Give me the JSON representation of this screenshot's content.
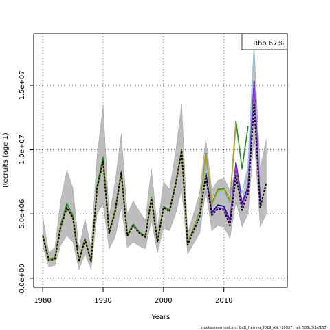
{
  "chart_data": {
    "type": "line",
    "title": "",
    "xlabel": "Years",
    "ylabel": "Recruits (age 1)",
    "xlim": [
      1978.5,
      2020.5
    ],
    "ylim": [
      -700000,
      19000000
    ],
    "x_ticks": [
      1980,
      1990,
      2000,
      2010
    ],
    "x_tick_labels": [
      "1980",
      "1990",
      "2000",
      "2010"
    ],
    "y_ticks": [
      0,
      5000000,
      10000000,
      15000000
    ],
    "y_tick_labels": [
      "0.0e+00",
      "5.0e+06",
      "1.0e+07",
      "1.5e+07"
    ],
    "grid": true,
    "legend_text": "Rho 67%",
    "legend_position": "top-right",
    "ci_band": {
      "x": [
        1980,
        1981,
        1982,
        1983,
        1984,
        1985,
        1986,
        1987,
        1988,
        1989,
        1990,
        1991,
        1992,
        1993,
        1994,
        1995,
        1996,
        1997,
        1998,
        1999,
        2000,
        2001,
        2002,
        2003,
        2004,
        2005,
        2006,
        2007,
        2008,
        2009,
        2010,
        2011,
        2012,
        2013,
        2014,
        2015,
        2016,
        2017
      ],
      "lower": [
        2500000,
        900000,
        1000000,
        2600000,
        3300000,
        2800000,
        700000,
        1900000,
        700000,
        5000000,
        5800000,
        2300000,
        3200000,
        5500000,
        2400000,
        2800000,
        2500000,
        2300000,
        4500000,
        2000000,
        3900000,
        3700000,
        5000000,
        6900000,
        1900000,
        2700000,
        3500000,
        6800000,
        3700000,
        4100000,
        4000000,
        3100000,
        6000000,
        4000000,
        5000000,
        11000000,
        4000000,
        5000000
      ],
      "upper": [
        4800000,
        2000000,
        2400000,
        6100000,
        8400000,
        7000000,
        2300000,
        4600000,
        2400000,
        9500000,
        13400000,
        4800000,
        7500000,
        11200000,
        5000000,
        6000000,
        5200000,
        4500000,
        8500000,
        3900000,
        7500000,
        6900000,
        9800000,
        13500000,
        3500000,
        5000000,
        6700000,
        10800000,
        6900000,
        7600000,
        7800000,
        6800000,
        8500000,
        6000000,
        8500000,
        18000000,
        8500000,
        10800000
      ]
    },
    "series": [
      {
        "name": "",
        "color": "#87cbe6",
        "x": [
          2005,
          2006,
          2007,
          2008,
          2009,
          2010,
          2011,
          2012,
          2013,
          2014,
          2015
        ],
        "values": [
          3800000,
          4500000,
          8500000,
          5600000,
          6700000,
          6500000,
          5800000,
          8500000,
          6600000,
          8700000,
          18000000
        ]
      },
      {
        "name": "",
        "color": "#228b22",
        "x": [
          1980,
          1981,
          1982,
          1983,
          1984,
          1985,
          1986,
          1987,
          1988,
          1989,
          1990,
          1991,
          1992,
          1993,
          1994,
          1995,
          1996,
          1997,
          1998,
          1999,
          2000,
          2001,
          2002,
          2003,
          2004,
          2005,
          2006,
          2007,
          2008,
          2009,
          2010,
          2011,
          2012,
          2013,
          2014
        ],
        "values": [
          3400000,
          1500000,
          1600000,
          4200000,
          5800000,
          4900000,
          1400000,
          3100000,
          1400000,
          7200000,
          9400000,
          3600000,
          5300000,
          8300000,
          3400000,
          4200000,
          3600000,
          3300000,
          6300000,
          2900000,
          5600000,
          5300000,
          7400000,
          10000000,
          2800000,
          3900000,
          5200000,
          9700000,
          5800000,
          6900000,
          7000000,
          6000000,
          12200000,
          8500000,
          11800000
        ]
      },
      {
        "name": "",
        "color": "#b8a31f",
        "x": [
          1980,
          1981,
          1982,
          1983,
          1984,
          1985,
          1986,
          1987,
          1988,
          1989,
          1990,
          1991,
          1992,
          1993,
          1994,
          1995,
          1996,
          1997,
          1998,
          1999,
          2000,
          2001,
          2002,
          2003,
          2004,
          2005,
          2006,
          2007,
          2008,
          2009,
          2010,
          2011,
          2012
        ],
        "values": [
          3300000,
          1400000,
          1500000,
          4000000,
          5500000,
          4600000,
          1300000,
          3000000,
          1300000,
          6900000,
          9000000,
          3500000,
          5100000,
          8100000,
          3300000,
          4100000,
          3500000,
          3200000,
          6200000,
          2800000,
          5500000,
          5200000,
          7300000,
          9900000,
          2700000,
          3800000,
          5100000,
          9600000,
          5700000,
          6800000,
          6900000,
          5900000,
          12000000
        ]
      },
      {
        "name": "",
        "color": "#00008b",
        "x": [
          2007,
          2008,
          2009,
          2010,
          2011,
          2012,
          2013,
          2014,
          2015,
          2016
        ],
        "values": [
          8200000,
          5100000,
          5700000,
          5600000,
          4500000,
          9000000,
          5800000,
          7100000,
          15300000,
          6000000
        ]
      },
      {
        "name": "",
        "color": "#9b30ff",
        "x": [
          2007,
          2008,
          2009,
          2010,
          2011,
          2012,
          2013,
          2014,
          2015,
          2016
        ],
        "values": [
          8000000,
          5000000,
          5500000,
          5400000,
          4400000,
          8800000,
          5600000,
          7000000,
          15100000,
          5800000
        ]
      },
      {
        "name": "",
        "color": "#000000",
        "dashed": true,
        "x": [
          1980,
          1981,
          1982,
          1983,
          1984,
          1985,
          1986,
          1987,
          1988,
          1989,
          1990,
          1991,
          1992,
          1993,
          1994,
          1995,
          1996,
          1997,
          1998,
          1999,
          2000,
          2001,
          2002,
          2003,
          2004,
          2005,
          2006,
          2007,
          2008,
          2009,
          2010,
          2011,
          2012,
          2013,
          2014,
          2015,
          2016,
          2017
        ],
        "values": [
          3300000,
          1400000,
          1500000,
          4000000,
          5500000,
          4700000,
          1300000,
          3000000,
          1300000,
          7000000,
          9100000,
          3500000,
          5200000,
          8200000,
          3300000,
          4100000,
          3500000,
          3200000,
          6200000,
          2800000,
          5500000,
          5200000,
          7300000,
          9900000,
          2600000,
          3700000,
          4800000,
          8000000,
          4900000,
          5400000,
          5300000,
          4100000,
          8000000,
          5300000,
          6600000,
          13500000,
          5500000,
          7400000
        ]
      }
    ]
  },
  "credit": "stockassessment.org, GoB_Herring_2019_AN, r10937 , git: 503cf91af157"
}
